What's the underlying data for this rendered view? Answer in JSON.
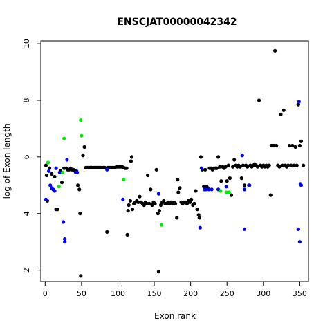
{
  "chart_data": {
    "type": "scatter",
    "title": "ENSCJAT00000042342",
    "xlabel": "Exon rank",
    "ylabel": "log of Exon length",
    "xlim": [
      -6,
      362
    ],
    "ylim": [
      1.6,
      10.1
    ],
    "xticks": [
      0,
      50,
      100,
      150,
      200,
      250,
      300,
      350
    ],
    "yticks": [
      2,
      4,
      6,
      8,
      10
    ],
    "grid": false,
    "legend": "none",
    "colors": {
      "black": "#000000",
      "blue": "#0000ff",
      "green": "#00ee00"
    },
    "series": [
      {
        "color": "black",
        "points": [
          [
            1,
            5.7
          ],
          [
            2,
            5.35
          ],
          [
            3,
            4.45
          ],
          [
            6,
            5.6
          ],
          [
            9,
            5.4
          ],
          [
            13,
            5.3
          ],
          [
            15,
            4.15
          ],
          [
            17,
            4.15
          ],
          [
            21,
            5.5
          ],
          [
            23,
            5.1
          ],
          [
            26,
            5.6
          ],
          [
            29,
            5.6
          ],
          [
            31,
            5.55
          ],
          [
            33,
            5.55
          ],
          [
            35,
            5.6
          ],
          [
            37,
            5.55
          ],
          [
            39,
            5.55
          ],
          [
            41,
            5.5
          ],
          [
            43,
            5.5
          ],
          [
            45,
            5.0
          ],
          [
            47,
            4.85
          ],
          [
            48,
            4.0
          ],
          [
            49,
            1.8
          ],
          [
            52,
            6.05
          ],
          [
            54,
            6.35
          ],
          [
            56,
            5.62
          ],
          [
            58,
            5.62
          ],
          [
            60,
            5.62
          ],
          [
            62,
            5.62
          ],
          [
            64,
            5.62
          ],
          [
            66,
            5.62
          ],
          [
            68,
            5.62
          ],
          [
            70,
            5.62
          ],
          [
            72,
            5.62
          ],
          [
            74,
            5.62
          ],
          [
            76,
            5.62
          ],
          [
            78,
            5.62
          ],
          [
            80,
            5.62
          ],
          [
            82,
            5.62
          ],
          [
            85,
            3.35
          ],
          [
            86,
            5.62
          ],
          [
            88,
            5.62
          ],
          [
            90,
            5.62
          ],
          [
            92,
            5.62
          ],
          [
            94,
            5.62
          ],
          [
            96,
            5.62
          ],
          [
            98,
            5.65
          ],
          [
            100,
            5.65
          ],
          [
            102,
            5.65
          ],
          [
            104,
            5.65
          ],
          [
            106,
            5.65
          ],
          [
            108,
            5.62
          ],
          [
            110,
            5.6
          ],
          [
            112,
            5.6
          ],
          [
            113,
            3.25
          ],
          [
            114,
            4.1
          ],
          [
            115,
            4.3
          ],
          [
            117,
            4.45
          ],
          [
            118,
            5.85
          ],
          [
            119,
            6.0
          ],
          [
            120,
            4.15
          ],
          [
            122,
            4.35
          ],
          [
            124,
            4.4
          ],
          [
            126,
            4.45
          ],
          [
            128,
            4.4
          ],
          [
            130,
            4.6
          ],
          [
            132,
            4.4
          ],
          [
            134,
            4.35
          ],
          [
            136,
            4.3
          ],
          [
            138,
            4.4
          ],
          [
            140,
            4.35
          ],
          [
            141,
            5.35
          ],
          [
            143,
            4.35
          ],
          [
            145,
            4.85
          ],
          [
            147,
            4.3
          ],
          [
            149,
            4.4
          ],
          [
            151,
            4.35
          ],
          [
            153,
            5.55
          ],
          [
            155,
            4.0
          ],
          [
            156,
            1.95
          ],
          [
            157,
            4.1
          ],
          [
            159,
            4.3
          ],
          [
            161,
            4.4
          ],
          [
            163,
            4.45
          ],
          [
            165,
            4.35
          ],
          [
            167,
            4.35
          ],
          [
            169,
            4.4
          ],
          [
            171,
            4.35
          ],
          [
            173,
            4.4
          ],
          [
            175,
            4.35
          ],
          [
            177,
            4.4
          ],
          [
            179,
            4.35
          ],
          [
            181,
            3.85
          ],
          [
            182,
            5.2
          ],
          [
            183,
            4.75
          ],
          [
            185,
            4.9
          ],
          [
            187,
            4.4
          ],
          [
            189,
            4.35
          ],
          [
            191,
            4.4
          ],
          [
            193,
            4.4
          ],
          [
            195,
            4.35
          ],
          [
            197,
            4.45
          ],
          [
            199,
            4.4
          ],
          [
            201,
            4.5
          ],
          [
            203,
            4.3
          ],
          [
            205,
            4.35
          ],
          [
            207,
            4.8
          ],
          [
            209,
            4.15
          ],
          [
            211,
            3.95
          ],
          [
            212,
            3.85
          ],
          [
            214,
            6.0
          ],
          [
            216,
            5.55
          ],
          [
            218,
            4.95
          ],
          [
            220,
            5.55
          ],
          [
            222,
            4.95
          ],
          [
            224,
            4.9
          ],
          [
            226,
            5.6
          ],
          [
            228,
            5.6
          ],
          [
            230,
            5.55
          ],
          [
            232,
            5.6
          ],
          [
            234,
            5.6
          ],
          [
            236,
            5.6
          ],
          [
            238,
            6.0
          ],
          [
            240,
            5.65
          ],
          [
            242,
            5.15
          ],
          [
            244,
            5.65
          ],
          [
            246,
            5.6
          ],
          [
            248,
            5.65
          ],
          [
            250,
            5.15
          ],
          [
            252,
            5.7
          ],
          [
            254,
            5.25
          ],
          [
            256,
            4.65
          ],
          [
            258,
            5.65
          ],
          [
            260,
            5.9
          ],
          [
            262,
            5.7
          ],
          [
            264,
            5.65
          ],
          [
            266,
            5.7
          ],
          [
            268,
            5.65
          ],
          [
            270,
            5.25
          ],
          [
            272,
            5.7
          ],
          [
            274,
            5.0
          ],
          [
            276,
            5.7
          ],
          [
            278,
            5.65
          ],
          [
            280,
            5.0
          ],
          [
            282,
            5.7
          ],
          [
            284,
            5.65
          ],
          [
            286,
            5.7
          ],
          [
            288,
            5.75
          ],
          [
            290,
            5.7
          ],
          [
            292,
            5.65
          ],
          [
            294,
            8.0
          ],
          [
            296,
            5.7
          ],
          [
            298,
            5.65
          ],
          [
            300,
            5.7
          ],
          [
            302,
            5.65
          ],
          [
            304,
            5.7
          ],
          [
            306,
            5.65
          ],
          [
            308,
            5.7
          ],
          [
            310,
            4.65
          ],
          [
            311,
            6.4
          ],
          [
            313,
            6.4
          ],
          [
            315,
            6.4
          ],
          [
            316,
            9.75
          ],
          [
            318,
            6.4
          ],
          [
            320,
            5.7
          ],
          [
            322,
            5.65
          ],
          [
            324,
            7.5
          ],
          [
            326,
            5.7
          ],
          [
            328,
            7.65
          ],
          [
            330,
            5.7
          ],
          [
            332,
            5.65
          ],
          [
            334,
            5.7
          ],
          [
            336,
            6.4
          ],
          [
            338,
            5.7
          ],
          [
            340,
            6.4
          ],
          [
            342,
            5.7
          ],
          [
            344,
            6.35
          ],
          [
            346,
            5.7
          ],
          [
            348,
            7.85
          ],
          [
            350,
            6.4
          ],
          [
            352,
            6.55
          ],
          [
            355,
            5.7
          ]
        ]
      },
      {
        "color": "blue",
        "points": [
          [
            1,
            4.5
          ],
          [
            5,
            5.5
          ],
          [
            7,
            5.0
          ],
          [
            9,
            4.9
          ],
          [
            11,
            4.85
          ],
          [
            13,
            4.8
          ],
          [
            15,
            5.6
          ],
          [
            20,
            5.45
          ],
          [
            25,
            3.7
          ],
          [
            27,
            3.1
          ],
          [
            27,
            3.0
          ],
          [
            30,
            5.9
          ],
          [
            42,
            5.45
          ],
          [
            44,
            5.45
          ],
          [
            85,
            5.55
          ],
          [
            107,
            4.5
          ],
          [
            156,
            4.7
          ],
          [
            213,
            3.5
          ],
          [
            215,
            5.6
          ],
          [
            219,
            4.85
          ],
          [
            221,
            4.85
          ],
          [
            225,
            4.85
          ],
          [
            229,
            4.85
          ],
          [
            238,
            4.85
          ],
          [
            249,
            4.95
          ],
          [
            271,
            6.05
          ],
          [
            274,
            3.45
          ],
          [
            274,
            4.85
          ],
          [
            281,
            5.0
          ],
          [
            348,
            3.45
          ],
          [
            349,
            7.95
          ],
          [
            350,
            3.0
          ],
          [
            351,
            5.05
          ],
          [
            352,
            5.0
          ]
        ]
      },
      {
        "color": "green",
        "points": [
          [
            4,
            5.8
          ],
          [
            19,
            4.95
          ],
          [
            24,
            5.45
          ],
          [
            26,
            6.65
          ],
          [
            49,
            7.3
          ],
          [
            50,
            6.75
          ],
          [
            108,
            5.2
          ],
          [
            160,
            3.6
          ],
          [
            241,
            4.8
          ],
          [
            249,
            4.75
          ],
          [
            253,
            4.75
          ]
        ]
      }
    ]
  }
}
